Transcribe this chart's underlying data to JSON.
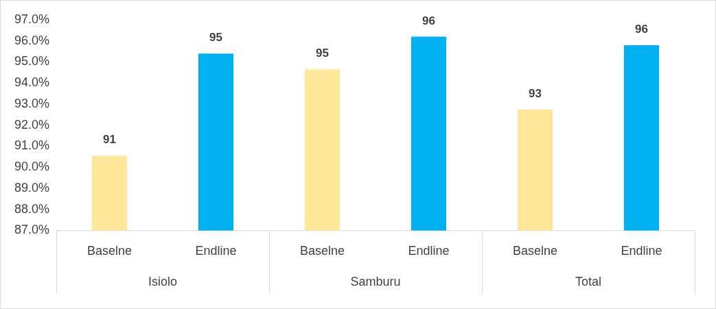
{
  "chart_data": {
    "type": "bar",
    "categories": [
      "Baselne",
      "Endline",
      "Baselne",
      "Endline",
      "Baselne",
      "Endline"
    ],
    "values": [
      90.55,
      95.4,
      94.65,
      96.2,
      92.75,
      95.8
    ],
    "colors": [
      "#ffe699",
      "#00b0f0",
      "#ffe699",
      "#00b0f0",
      "#ffe699",
      "#00b0f0"
    ],
    "value_labels": [
      "91",
      "95",
      "95",
      "96",
      "93",
      "96"
    ],
    "annotations": [
      "Isiolo",
      "Samburu",
      "Total"
    ],
    "ylim": [
      87,
      97
    ],
    "yticks": [
      {
        "value": 87,
        "label": "87.0%"
      },
      {
        "value": 88,
        "label": "88.0%"
      },
      {
        "value": 89,
        "label": "89.0%"
      },
      {
        "value": 90,
        "label": "90.0%"
      },
      {
        "value": 91,
        "label": "91.0%"
      },
      {
        "value": 92,
        "label": "92.0%"
      },
      {
        "value": 93,
        "label": "93.0%"
      },
      {
        "value": 94,
        "label": "94.0%"
      },
      {
        "value": 95,
        "label": "95.0%"
      },
      {
        "value": 96,
        "label": "96.0%"
      },
      {
        "value": 97,
        "label": "97.0%"
      }
    ],
    "grid": false,
    "legend": false
  }
}
